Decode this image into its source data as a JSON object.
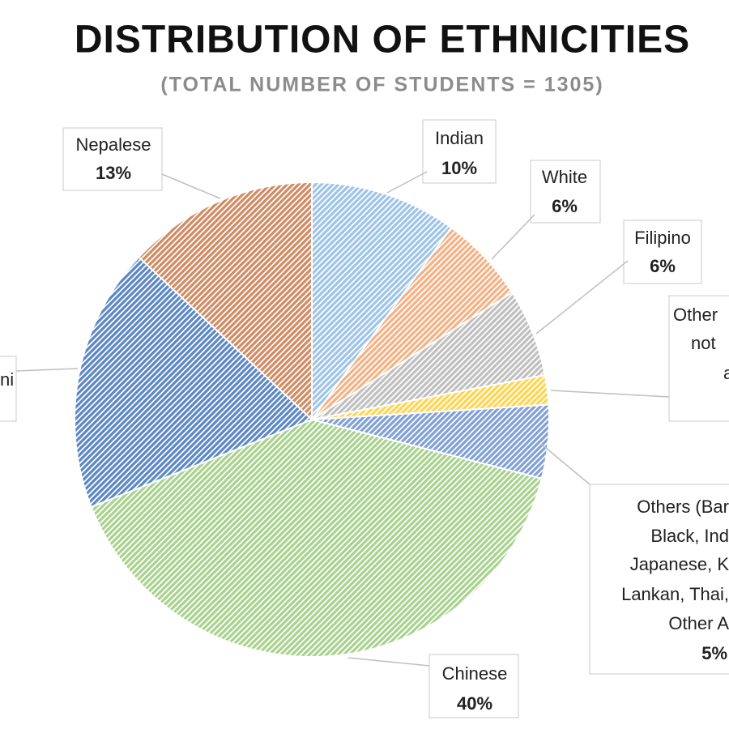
{
  "chart_data": {
    "type": "pie",
    "title": "DISTRIBUTION OF ETHNICITIES",
    "subtitle": "(TOTAL NUMBER OF STUDENTS = 1305)",
    "categories": [
      [
        "Indian"
      ],
      [
        "White"
      ],
      [
        "Filipino"
      ],
      [
        "Other",
        "not",
        "a"
      ],
      [
        "Others (Bar",
        "Black, Ind",
        "Japanese, K",
        "Lankan, Thai,",
        "Other A"
      ],
      [
        "Chinese"
      ],
      [
        "ni"
      ],
      [
        "Nepalese"
      ]
    ],
    "values": [
      10,
      6,
      6,
      2,
      5,
      40,
      18,
      13
    ],
    "value_labels": [
      "10%",
      "6%",
      "6%",
      null,
      "5%",
      "40%",
      null,
      "13%"
    ],
    "colors": [
      "#9dc3e6",
      "#f4b183",
      "#bfbfbf",
      "#ffd44f",
      "#7f9fd6",
      "#a9d18e",
      "#5a86c4",
      "#d08a62"
    ]
  }
}
